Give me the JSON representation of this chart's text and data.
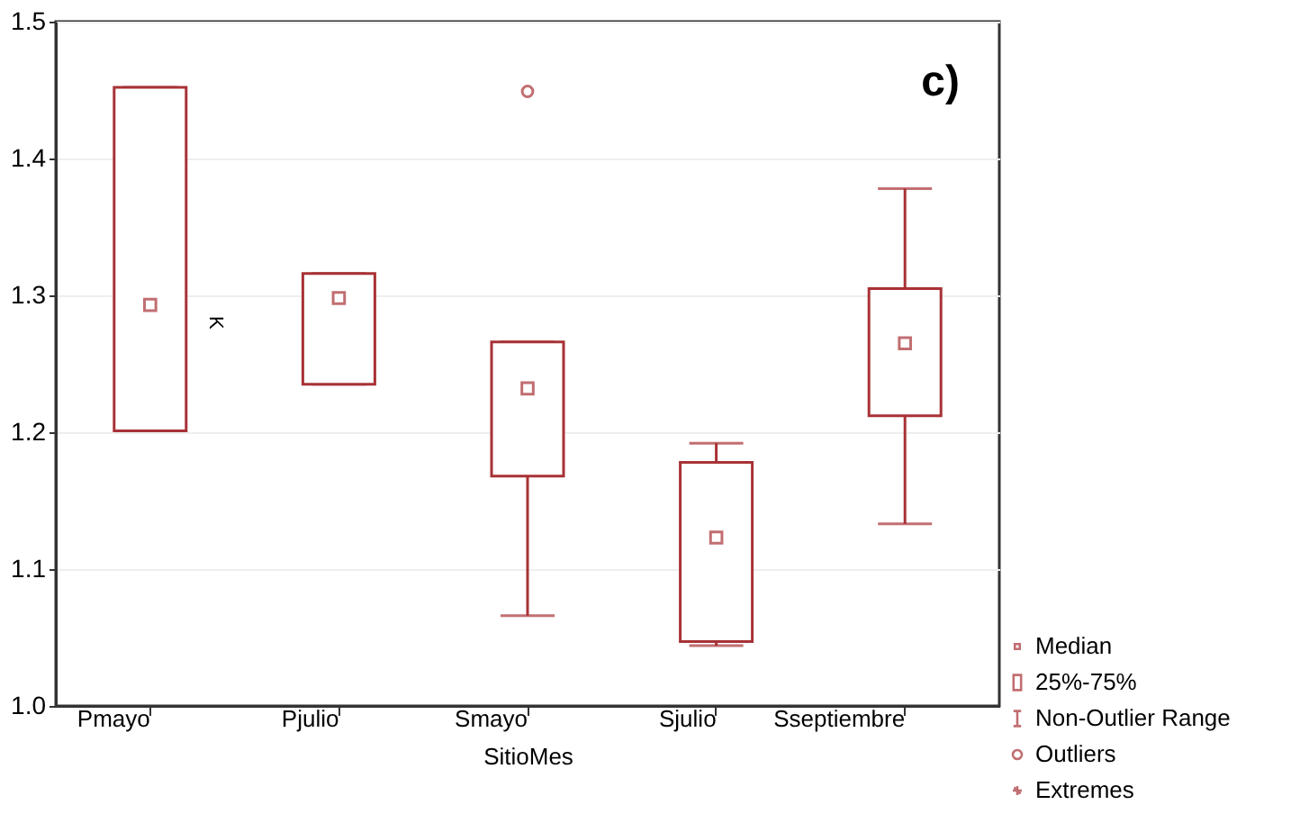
{
  "chart_data": {
    "type": "box",
    "categories": [
      "Pmayo",
      "Pjulio",
      "Smayo",
      "Sjulio",
      "Sseptiembre"
    ],
    "boxes": [
      {
        "low": 1.201,
        "q1": 1.201,
        "median": 1.293,
        "q3": 1.452,
        "high": 1.452
      },
      {
        "low": 1.235,
        "q1": 1.235,
        "median": 1.298,
        "q3": 1.316,
        "high": 1.316
      },
      {
        "low": 1.066,
        "q1": 1.168,
        "median": 1.232,
        "q3": 1.266,
        "high": 1.266,
        "outliers": [
          1.449
        ]
      },
      {
        "low": 1.044,
        "q1": 1.047,
        "median": 1.123,
        "q3": 1.178,
        "high": 1.192
      },
      {
        "low": 1.133,
        "q1": 1.212,
        "median": 1.265,
        "q3": 1.305,
        "high": 1.378
      }
    ],
    "color": "#a83236",
    "xlabel": "SitioMes",
    "ylim": [
      1.0,
      1.5
    ],
    "yticks": [
      {
        "value": 1.0,
        "label": "1.0"
      },
      1.1,
      1.2,
      1.3,
      1.4,
      1.5
    ],
    "grid": "y",
    "annotations": [
      "c)",
      "K",
      "Median",
      "25%-75%",
      "Non-Outlier Range",
      "Outliers",
      "Extremes"
    ]
  }
}
